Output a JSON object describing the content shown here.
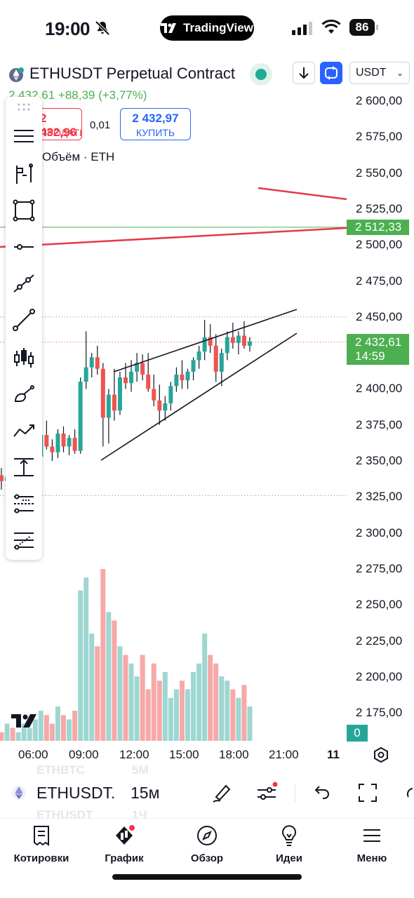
{
  "status_bar": {
    "time": "19:00",
    "app_badge": "TradingView",
    "battery": "86"
  },
  "header": {
    "title": "ETHUSDT Perpetual Contract",
    "currency": "USDT"
  },
  "price_line": "2 432,61  +88,39 (+3,77%)",
  "trade": {
    "sell_price": "2 432,96",
    "sell_label": "ПРОДАТЬ",
    "spread": "0,01",
    "buy_price": "2 432,97",
    "buy_label": "КУПИТЬ"
  },
  "volume_legend": "Объём · ETH",
  "price_axis": [
    "2 600,00",
    "2 575,00",
    "2 550,00",
    "2 525,00",
    "2 500,00",
    "2 475,00",
    "2 450,00",
    "2 425,00",
    "2 400,00",
    "2 375,00",
    "2 350,00",
    "2 325,00",
    "2 300,00",
    "2 275,00",
    "2 250,00",
    "2 225,00",
    "2 200,00",
    "2 175,00"
  ],
  "level_badge": "2 512,33",
  "current_price_badge": {
    "price": "2 432,61",
    "countdown": "14:59"
  },
  "volume_badge": "0",
  "time_axis": [
    "06:00",
    "09:00",
    "12:00",
    "15:00",
    "18:00",
    "21:00"
  ],
  "time_axis_date": "11",
  "symbol_bar": {
    "symbol": "ETHUSDT.",
    "interval": "15м",
    "ghost_above": [
      "ETHBTC",
      "5M"
    ],
    "ghost_below": [
      "ETHUSDT",
      "1Ч"
    ]
  },
  "tabs": [
    {
      "label": "Котировки",
      "icon": "list-icon"
    },
    {
      "label": "График",
      "icon": "chart-icon"
    },
    {
      "label": "Обзор",
      "icon": "compass-icon"
    },
    {
      "label": "Идеи",
      "icon": "lightbulb-icon"
    },
    {
      "label": "Меню",
      "icon": "hamburger-icon"
    }
  ],
  "colors": {
    "up": "#26a69a",
    "down": "#ef5350",
    "accent": "#2962ff",
    "green_badge": "#4caf50",
    "red_line": "#e53945"
  },
  "chart_data": {
    "type": "candlestick",
    "y_range": [
      2170,
      2610
    ],
    "price_ticks": [
      2600,
      2575,
      2550,
      2525,
      2500,
      2475,
      2450,
      2425,
      2400,
      2375,
      2350,
      2325,
      2300,
      2275,
      2250,
      2225,
      2200,
      2175
    ],
    "current_price": 2432.61,
    "horizontal_level": 2512.33,
    "dotted_levels": [
      2450,
      2326
    ],
    "candles_ohlc": [
      [
        2340,
        2345,
        2330,
        2336
      ],
      [
        2336,
        2342,
        2328,
        2339
      ],
      [
        2339,
        2341,
        2326,
        2330
      ],
      [
        2330,
        2340,
        2327,
        2337
      ],
      [
        2337,
        2346,
        2334,
        2344
      ],
      [
        2344,
        2350,
        2341,
        2348
      ],
      [
        2348,
        2356,
        2344,
        2353
      ],
      [
        2353,
        2370,
        2348,
        2368
      ],
      [
        2368,
        2378,
        2358,
        2360
      ],
      [
        2360,
        2365,
        2350,
        2356
      ],
      [
        2356,
        2372,
        2352,
        2369
      ],
      [
        2369,
        2374,
        2356,
        2360
      ],
      [
        2360,
        2368,
        2354,
        2366
      ],
      [
        2366,
        2372,
        2355,
        2357
      ],
      [
        2357,
        2408,
        2355,
        2405
      ],
      [
        2405,
        2440,
        2400,
        2415
      ],
      [
        2415,
        2425,
        2408,
        2422
      ],
      [
        2422,
        2430,
        2410,
        2414
      ],
      [
        2414,
        2418,
        2360,
        2380
      ],
      [
        2380,
        2400,
        2362,
        2396
      ],
      [
        2396,
        2414,
        2378,
        2385
      ],
      [
        2385,
        2412,
        2382,
        2408
      ],
      [
        2408,
        2418,
        2400,
        2404
      ],
      [
        2404,
        2420,
        2398,
        2412
      ],
      [
        2412,
        2425,
        2405,
        2418
      ],
      [
        2418,
        2424,
        2406,
        2410
      ],
      [
        2410,
        2425,
        2398,
        2400
      ],
      [
        2400,
        2410,
        2388,
        2392
      ],
      [
        2392,
        2403,
        2375,
        2385
      ],
      [
        2385,
        2395,
        2378,
        2390
      ],
      [
        2390,
        2405,
        2385,
        2402
      ],
      [
        2402,
        2415,
        2398,
        2410
      ],
      [
        2410,
        2420,
        2400,
        2406
      ],
      [
        2406,
        2414,
        2400,
        2412
      ],
      [
        2412,
        2422,
        2406,
        2420
      ],
      [
        2420,
        2430,
        2414,
        2426
      ],
      [
        2426,
        2448,
        2420,
        2436
      ],
      [
        2436,
        2445,
        2425,
        2430
      ],
      [
        2430,
        2438,
        2405,
        2412
      ],
      [
        2412,
        2428,
        2402,
        2425
      ],
      [
        2425,
        2440,
        2420,
        2436
      ],
      [
        2436,
        2446,
        2428,
        2432
      ],
      [
        2432,
        2440,
        2424,
        2437
      ],
      [
        2437,
        2447,
        2428,
        2430
      ],
      [
        2430,
        2436,
        2426,
        2433
      ]
    ],
    "volumes": [
      2,
      4,
      3,
      2,
      4,
      3,
      5,
      7,
      6,
      4,
      8,
      6,
      5,
      7,
      35,
      38,
      25,
      22,
      40,
      30,
      28,
      22,
      20,
      18,
      15,
      20,
      12,
      18,
      14,
      16,
      10,
      12,
      14,
      12,
      16,
      18,
      25,
      20,
      18,
      15,
      14,
      12,
      10,
      13,
      8
    ],
    "wedge_upper": [
      [
        2403,
        0
      ],
      [
        2456,
        1
      ]
    ],
    "wedge_lower": [
      [
        2352,
        0
      ],
      [
        2444,
        1
      ]
    ],
    "red_trend_lines": [
      [
        [
          2529,
          2521
        ]
      ],
      [
        [
          2500,
          2514
        ]
      ]
    ]
  }
}
